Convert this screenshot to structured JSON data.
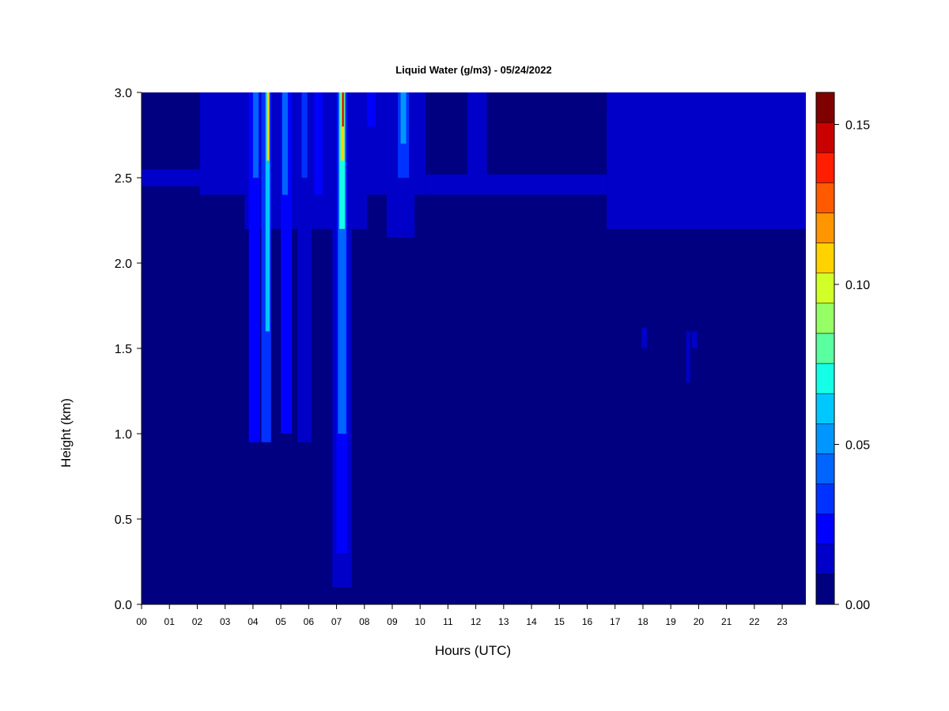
{
  "chart_data": {
    "type": "heatmap",
    "title": "Liquid Water (g/m3) - 05/24/2022",
    "xlabel": "Hours (UTC)",
    "ylabel": "Height (km)",
    "xlim": [
      0,
      23.85
    ],
    "ylim": [
      0,
      3.0
    ],
    "x_tick_labels": [
      "00",
      "01",
      "02",
      "03",
      "04",
      "05",
      "06",
      "07",
      "08",
      "09",
      "10",
      "11",
      "12",
      "13",
      "14",
      "15",
      "16",
      "17",
      "18",
      "19",
      "20",
      "21",
      "22",
      "23"
    ],
    "y_ticks": [
      0.0,
      0.5,
      1.0,
      1.5,
      2.0,
      2.5,
      3.0
    ],
    "y_tick_labels": [
      "0.0",
      "0.5",
      "1.0",
      "1.5",
      "2.0",
      "2.5",
      "3.0"
    ],
    "colorbar": {
      "min": 0.0,
      "max": 0.16,
      "levels": 16,
      "ticks": [
        0.0,
        0.05,
        0.1,
        0.15
      ],
      "tick_labels": [
        "0.00",
        "0.05",
        "0.10",
        "0.15"
      ],
      "colors": [
        "#00007f",
        "#0000b2",
        "#0000e5",
        "#0019ff",
        "#004cff",
        "#007fff",
        "#00b2ff",
        "#00e5ff",
        "#19ffe5",
        "#4cffb2",
        "#7fff7f",
        "#b2ff4c",
        "#e5ff19",
        "#ffe500",
        "#ffb200",
        "#ff7f00",
        "#ff4c00",
        "#ff1900",
        "#e50000",
        "#b20000",
        "#7f0000"
      ],
      "bins": [
        "#000080",
        "#0000c8",
        "#0000ff",
        "#0032ff",
        "#0064ff",
        "#0096ff",
        "#00c8ff",
        "#14ffe6",
        "#5affa0",
        "#96ff64",
        "#d2ff28",
        "#ffd200",
        "#ff9600",
        "#ff5a00",
        "#ff1e00",
        "#c80000",
        "#800000"
      ]
    },
    "background_value": 0.003,
    "regions": [
      {
        "x": [
          0.0,
          2.1
        ],
        "y": [
          2.55,
          3.0
        ],
        "value": 0.008
      },
      {
        "x": [
          0.0,
          2.1
        ],
        "y": [
          2.45,
          2.55
        ],
        "value": 0.016
      },
      {
        "x": [
          2.1,
          10.2
        ],
        "y": [
          2.4,
          3.0
        ],
        "value": 0.016
      },
      {
        "x": [
          3.7,
          8.1
        ],
        "y": [
          2.2,
          2.4
        ],
        "value": 0.014
      },
      {
        "x": [
          8.8,
          9.8
        ],
        "y": [
          2.15,
          2.4
        ],
        "value": 0.014
      },
      {
        "x": [
          10.2,
          11.7
        ],
        "y": [
          2.5,
          3.0
        ],
        "value": 0.008
      },
      {
        "x": [
          10.2,
          16.7
        ],
        "y": [
          2.4,
          2.52
        ],
        "value": 0.016
      },
      {
        "x": [
          11.7,
          12.4
        ],
        "y": [
          2.5,
          3.0
        ],
        "value": 0.016
      },
      {
        "x": [
          12.4,
          16.7
        ],
        "y": [
          2.55,
          3.0
        ],
        "value": 0.008
      },
      {
        "x": [
          16.7,
          23.85
        ],
        "y": [
          2.2,
          3.0
        ],
        "value": 0.016
      },
      {
        "x": [
          16.7,
          23.85
        ],
        "y": [
          2.55,
          2.9
        ],
        "value": 0.018
      },
      {
        "x": [
          3.85,
          4.25
        ],
        "y": [
          0.95,
          3.0
        ],
        "value": 0.022
      },
      {
        "x": [
          4.3,
          4.65
        ],
        "y": [
          0.95,
          3.0
        ],
        "value": 0.03
      },
      {
        "x": [
          4.45,
          4.6
        ],
        "y": [
          1.6,
          3.0
        ],
        "value": 0.06
      },
      {
        "x": [
          4.5,
          4.58
        ],
        "y": [
          2.6,
          3.0
        ],
        "value": 0.11
      },
      {
        "x": [
          4.0,
          4.2
        ],
        "y": [
          2.5,
          3.0
        ],
        "value": 0.04
      },
      {
        "x": [
          5.0,
          5.4
        ],
        "y": [
          1.0,
          3.0
        ],
        "value": 0.02
      },
      {
        "x": [
          5.05,
          5.25
        ],
        "y": [
          2.4,
          3.0
        ],
        "value": 0.04
      },
      {
        "x": [
          5.6,
          6.1
        ],
        "y": [
          0.95,
          3.0
        ],
        "value": 0.018
      },
      {
        "x": [
          5.75,
          5.95
        ],
        "y": [
          2.5,
          3.0
        ],
        "value": 0.035
      },
      {
        "x": [
          6.2,
          6.5
        ],
        "y": [
          2.4,
          3.0
        ],
        "value": 0.02
      },
      {
        "x": [
          6.85,
          7.55
        ],
        "y": [
          0.1,
          3.0
        ],
        "value": 0.018
      },
      {
        "x": [
          7.0,
          7.4
        ],
        "y": [
          0.3,
          3.0
        ],
        "value": 0.026
      },
      {
        "x": [
          7.05,
          7.35
        ],
        "y": [
          1.0,
          3.0
        ],
        "value": 0.04
      },
      {
        "x": [
          7.1,
          7.3
        ],
        "y": [
          2.2,
          3.0
        ],
        "value": 0.07
      },
      {
        "x": [
          7.15,
          7.28
        ],
        "y": [
          2.6,
          3.0
        ],
        "value": 0.11
      },
      {
        "x": [
          7.2,
          7.26
        ],
        "y": [
          2.8,
          3.0
        ],
        "value": 0.15
      },
      {
        "x": [
          9.2,
          9.6
        ],
        "y": [
          2.5,
          3.0
        ],
        "value": 0.03
      },
      {
        "x": [
          9.3,
          9.5
        ],
        "y": [
          2.7,
          3.0
        ],
        "value": 0.05
      },
      {
        "x": [
          8.1,
          8.4
        ],
        "y": [
          2.8,
          3.0
        ],
        "value": 0.02
      },
      {
        "x": [
          17.95,
          18.15
        ],
        "y": [
          1.5,
          1.62
        ],
        "value": 0.018
      },
      {
        "x": [
          19.55,
          19.7
        ],
        "y": [
          1.3,
          1.6
        ],
        "value": 0.016
      },
      {
        "x": [
          19.75,
          19.95
        ],
        "y": [
          1.5,
          1.6
        ],
        "value": 0.016
      }
    ]
  }
}
